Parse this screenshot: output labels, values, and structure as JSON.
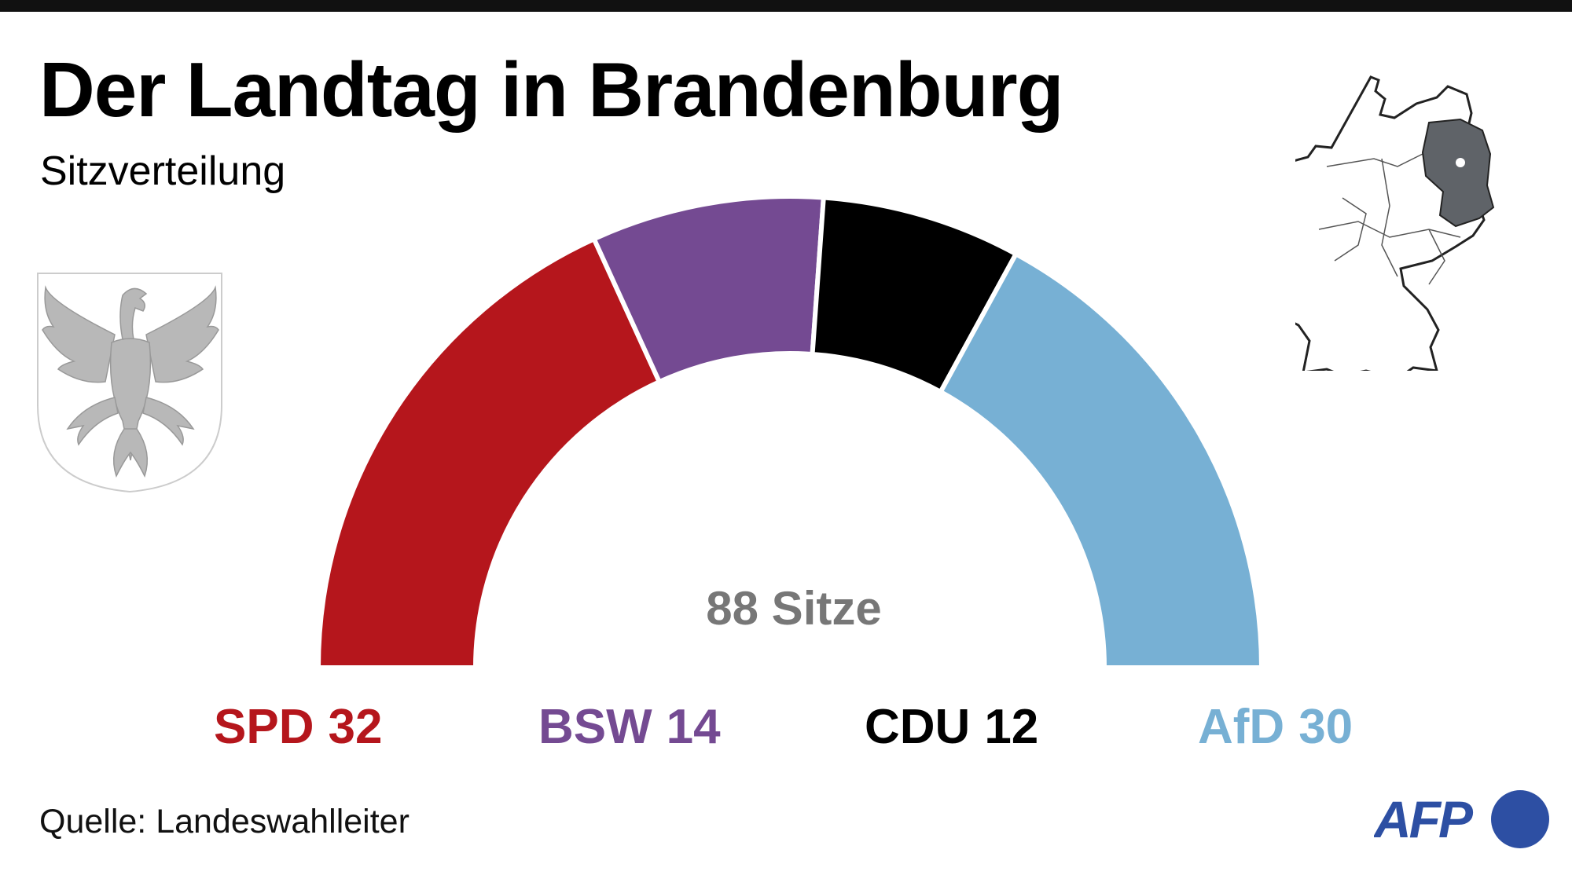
{
  "header": {
    "title": "Der Landtag in Brandenburg",
    "subtitle": "Sitzverteilung"
  },
  "chart_data": {
    "type": "pie",
    "variant": "parliament-semicircle",
    "title": "Der Landtag in Brandenburg",
    "subtitle": "Sitzverteilung",
    "center_label": "88 Sitze",
    "total": 88,
    "series": [
      {
        "name": "SPD",
        "value": 32,
        "color": "#b5161c"
      },
      {
        "name": "BSW",
        "value": 14,
        "color": "#744a92"
      },
      {
        "name": "CDU",
        "value": 12,
        "color": "#000000"
      },
      {
        "name": "AfD",
        "value": 30,
        "color": "#77b0d4"
      }
    ]
  },
  "footer": {
    "source": "Quelle: Landeswahlleiter",
    "logo": "AFP",
    "logo_color": "#2d4fa3"
  },
  "decorations": {
    "coat_of_arms": "brandenburg-eagle-coat-of-arms",
    "locator_map": "germany-map-brandenburg-highlighted",
    "highlight_color": "#5f6368"
  }
}
